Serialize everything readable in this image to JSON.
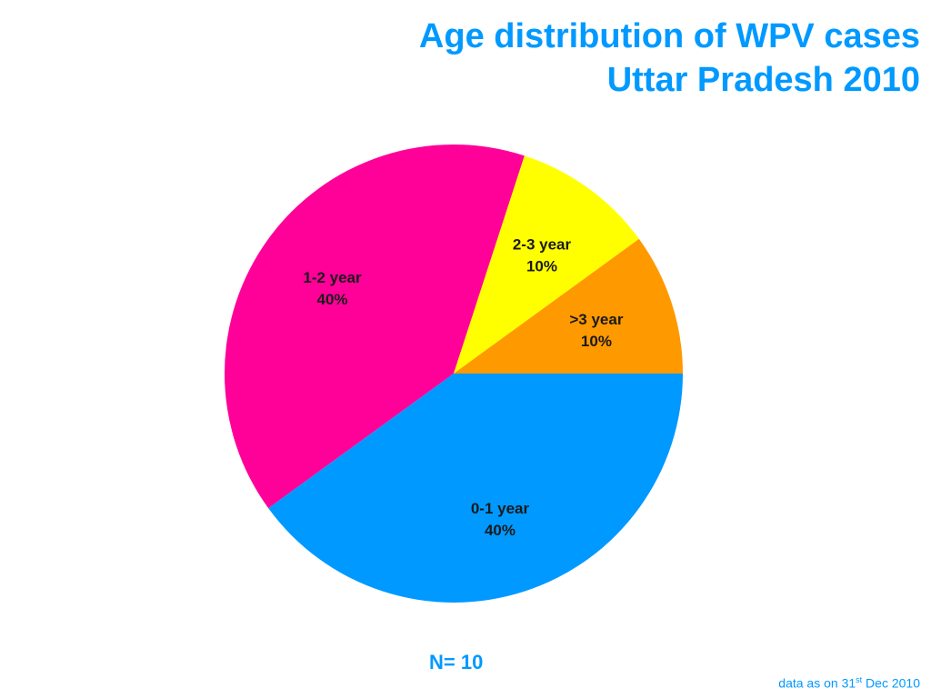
{
  "chart_data": {
    "type": "pie",
    "title": "Age distribution of WPV cases",
    "subtitle": "Uttar Pradesh 2010",
    "unit": "%",
    "slices": [
      {
        "label": "0-1 year",
        "value": 40,
        "value_label": "40%",
        "color": "#0099ff"
      },
      {
        "label": "1-2 year",
        "value": 40,
        "value_label": "40%",
        "color": "#ff0099"
      },
      {
        "label": "2-3 year",
        "value": 10,
        "value_label": "10%",
        "color": "#ffff00"
      },
      {
        "label": ">3 year",
        "value": 10,
        "value_label": "10%",
        "color": "#ff9900"
      }
    ],
    "start_direction": "east",
    "direction": "clockwise",
    "legend": "none",
    "labels": "inside slices"
  },
  "sample_size": "N= 10",
  "footnote": {
    "prefix": "data as on 31",
    "superscript": "st",
    "suffix": " Dec 2010"
  }
}
